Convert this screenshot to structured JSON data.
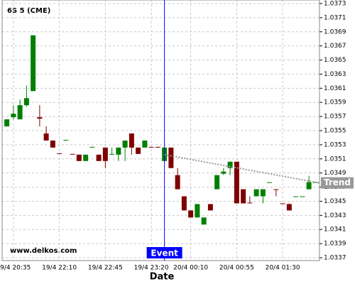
{
  "chart_data": {
    "type": "candlestick",
    "title": "6S 5 (CME)",
    "watermark": "www.delkos.com",
    "x_label": "Date",
    "categories": [
      null,
      "19/4 20:35",
      null,
      null,
      null,
      null,
      null,
      null,
      "19/4 22:10",
      null,
      null,
      null,
      null,
      null,
      null,
      "19/4 22:45",
      null,
      null,
      null,
      null,
      null,
      null,
      "19/4 23:20",
      null,
      null,
      null,
      null,
      null,
      "20/4 00:10",
      null,
      null,
      null,
      null,
      null,
      null,
      "20/4 00:55",
      null,
      null,
      null,
      null,
      null,
      null,
      "20/4 01:30",
      null,
      null,
      null,
      null,
      null
    ],
    "open": [
      1.03556,
      1.03569,
      1.03566,
      1.03586,
      1.03606,
      1.03569,
      1.03546,
      1.03536,
      1.03518,
      1.03536,
      1.03517,
      1.03516,
      1.03507,
      1.03526,
      1.03516,
      1.03526,
      1.03516,
      1.03516,
      1.03526,
      1.03546,
      1.03526,
      1.03526,
      1.03527,
      1.03527,
      1.03507,
      1.03526,
      1.03487,
      1.03457,
      1.03437,
      1.03427,
      1.03417,
      1.03446,
      1.03467,
      1.03489,
      1.03497,
      1.03506,
      1.03467,
      1.03448,
      1.03457,
      1.03457,
      1.03476,
      1.03467,
      1.03447,
      1.03446,
      1.03456,
      1.03456,
      1.03467,
      1.03476
    ],
    "high": [
      1.03566,
      1.03586,
      1.03594,
      1.03614,
      1.03685,
      1.03586,
      1.03556,
      1.03536,
      1.03518,
      1.03537,
      1.03517,
      1.03516,
      1.03516,
      1.03527,
      1.03516,
      1.03526,
      1.03526,
      1.03526,
      1.03536,
      1.03546,
      1.03526,
      1.03536,
      1.03527,
      1.03527,
      1.03526,
      1.03526,
      1.03497,
      1.03457,
      1.03437,
      1.03446,
      1.03427,
      1.03446,
      1.03487,
      1.03497,
      1.03506,
      1.03506,
      1.03467,
      1.03457,
      1.03467,
      1.03467,
      1.03477,
      1.03467,
      1.03447,
      1.03447,
      1.03457,
      1.03457,
      1.03486,
      1.03477
    ],
    "low": [
      1.03556,
      1.03566,
      1.03566,
      1.03584,
      1.03606,
      1.03556,
      1.03536,
      1.03526,
      1.03517,
      1.03536,
      1.03516,
      1.03507,
      1.03507,
      1.03526,
      1.03507,
      1.03497,
      1.03516,
      1.03507,
      1.03507,
      1.03516,
      1.03517,
      1.03526,
      1.03526,
      1.03526,
      1.03507,
      1.03497,
      1.03467,
      1.03437,
      1.03427,
      1.03427,
      1.03417,
      1.03437,
      1.03467,
      1.03487,
      1.03487,
      1.03447,
      1.03447,
      1.03447,
      1.03457,
      1.03447,
      1.03476,
      1.03457,
      1.03446,
      1.03437,
      1.03456,
      1.03456,
      1.03467,
      1.03476
    ],
    "close": [
      1.03566,
      1.03574,
      1.03586,
      1.03596,
      1.03685,
      1.03567,
      1.03536,
      1.03526,
      1.03517,
      1.03537,
      1.03516,
      1.03507,
      1.03516,
      1.03527,
      1.03507,
      1.03507,
      1.03517,
      1.03526,
      1.03536,
      1.03526,
      1.03517,
      1.03536,
      1.03526,
      1.03526,
      1.03526,
      1.03497,
      1.03467,
      1.03437,
      1.03427,
      1.03446,
      1.03427,
      1.03437,
      1.03487,
      1.03492,
      1.03506,
      1.03447,
      1.03447,
      1.03447,
      1.03467,
      1.03467,
      1.03477,
      1.03466,
      1.03446,
      1.03437,
      1.03457,
      1.03457,
      1.03477,
      1.03477
    ],
    "up_color": "#008000",
    "down_color": "#800000",
    "ylim": [
      1.03366,
      1.03735
    ],
    "yticks": [
      1.0337,
      1.0339,
      1.0341,
      1.0343,
      1.0345,
      1.0347,
      1.0349,
      1.0351,
      1.0353,
      1.0355,
      1.0357,
      1.0359,
      1.0361,
      1.0363,
      1.0365,
      1.0367,
      1.0369,
      1.0371,
      1.0373
    ],
    "grid": true,
    "trend": {
      "label": "Trend",
      "values": [
        1.03516,
        1.03476
      ],
      "color": "#999999"
    },
    "event": {
      "label": "Event",
      "color": "#0000ff"
    }
  }
}
